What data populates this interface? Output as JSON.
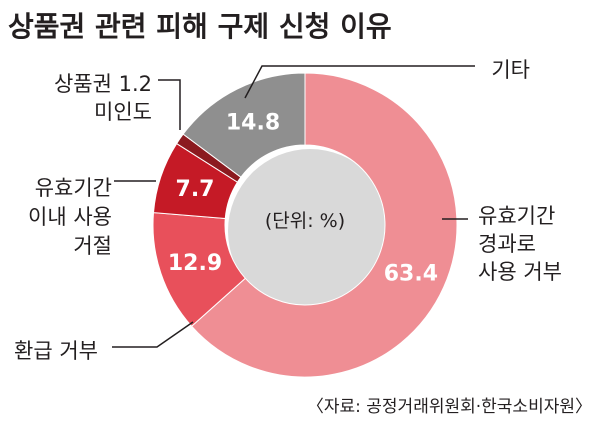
{
  "title": "상품권 관련 피해 구제 신청 이유",
  "unit_note": "(단위: %)",
  "source": "〈자료: 공정거래위원회·한국소비자원〉",
  "chart_data": {
    "type": "pie",
    "donut": true,
    "title": "상품권 관련 피해 구제 신청 이유",
    "unit": "%",
    "slices": [
      {
        "label_lines": [
          "유효기간",
          "경과로",
          "사용 거부"
        ],
        "value": 63.4,
        "value_label": "63.4",
        "color": "#ef8e94"
      },
      {
        "label_lines": [
          "환급 거부"
        ],
        "value": 12.9,
        "value_label": "12.9",
        "color": "#e8505b"
      },
      {
        "label_lines": [
          "유효기간",
          "이내 사용",
          "거절"
        ],
        "value": 7.7,
        "value_label": "7.7",
        "color": "#c51a26"
      },
      {
        "label_lines": [
          "상품권 1.2",
          "미인도"
        ],
        "value": 1.2,
        "value_label": "",
        "color": "#8b1a1f"
      },
      {
        "label_lines": [
          "기타"
        ],
        "value": 14.8,
        "value_label": "14.8",
        "color": "#8f8f8f"
      }
    ]
  }
}
